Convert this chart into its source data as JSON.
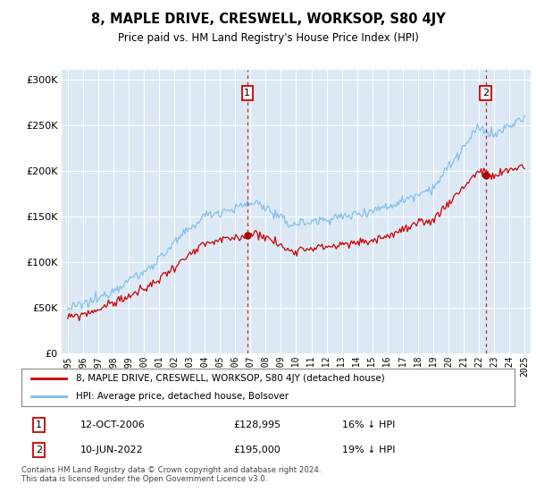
{
  "title": "8, MAPLE DRIVE, CRESWELL, WORKSOP, S80 4JY",
  "subtitle": "Price paid vs. HM Land Registry's House Price Index (HPI)",
  "legend_line1": "8, MAPLE DRIVE, CRESWELL, WORKSOP, S80 4JY (detached house)",
  "legend_line2": "HPI: Average price, detached house, Bolsover",
  "sale1_label": "1",
  "sale1_date": "12-OCT-2006",
  "sale1_price": "£128,995",
  "sale1_hpi": "16% ↓ HPI",
  "sale2_label": "2",
  "sale2_date": "10-JUN-2022",
  "sale2_price": "£195,000",
  "sale2_hpi": "19% ↓ HPI",
  "footer": "Contains HM Land Registry data © Crown copyright and database right 2024.\nThis data is licensed under the Open Government Licence v3.0.",
  "hpi_color": "#7abde8",
  "price_color": "#cc0000",
  "sale_marker_color": "#aa0000",
  "background_color": "#dce9f5",
  "plot_bg_color": "#dce9f5",
  "vline_color": "#cc0000",
  "ylim": [
    0,
    310000
  ],
  "yticks": [
    0,
    50000,
    100000,
    150000,
    200000,
    250000,
    300000
  ],
  "sale1_x": 2006.79,
  "sale1_y": 128995,
  "sale2_x": 2022.44,
  "sale2_y": 195000,
  "xmin": 1995,
  "xmax": 2025
}
